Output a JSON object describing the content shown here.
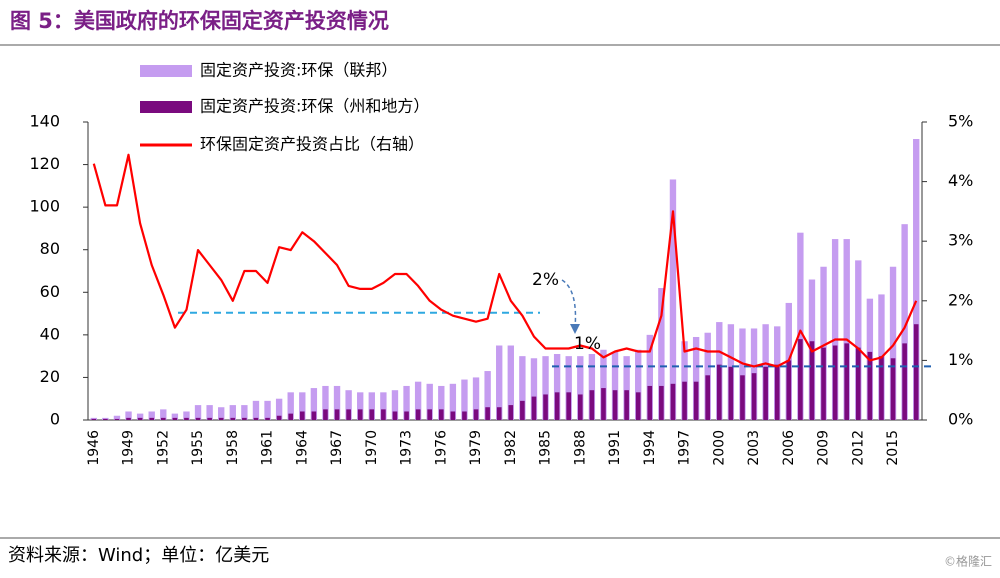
{
  "chart_data": {
    "type": "bar",
    "title": "图 5：美国政府的环保固定资产投资情况",
    "source": "资料来源：Wind；单位：亿美元",
    "watermark": "©格隆汇",
    "categories": [
      "1946",
      null,
      null,
      "1949",
      null,
      null,
      "1952",
      null,
      null,
      "1955",
      null,
      null,
      "1958",
      null,
      null,
      "1961",
      null,
      null,
      "1964",
      null,
      null,
      "1967",
      null,
      null,
      "1970",
      null,
      null,
      "1973",
      null,
      null,
      "1976",
      null,
      null,
      "1979",
      null,
      null,
      "1982",
      null,
      null,
      "1985",
      null,
      null,
      "1988",
      null,
      null,
      "1991",
      null,
      null,
      "1994",
      null,
      null,
      "1997",
      null,
      null,
      "2000",
      null,
      null,
      "2003",
      null,
      null,
      "2006",
      null,
      null,
      "2009",
      null,
      null,
      "2012",
      null,
      null,
      "2015",
      null,
      null
    ],
    "series": [
      {
        "name": "固定资产投资:环保（联邦）",
        "color": "#c59cf0",
        "type": "bar",
        "values": [
          1,
          1,
          2,
          4,
          3,
          4,
          5,
          3,
          4,
          7,
          7,
          6,
          7,
          7,
          9,
          9,
          10,
          13,
          13,
          15,
          16,
          16,
          14,
          13,
          13,
          13,
          14,
          16,
          18,
          17,
          16,
          17,
          19,
          20,
          23,
          35,
          35,
          30,
          29,
          30,
          31,
          30,
          30,
          31,
          33,
          32,
          30,
          33,
          40,
          62,
          113,
          37,
          39,
          41,
          46,
          45,
          43,
          43,
          45,
          44,
          55,
          88,
          66,
          72,
          85,
          85,
          75,
          57,
          59,
          72,
          92,
          132
        ]
      },
      {
        "name": "固定资产投资:环保（州和地方）",
        "color": "#7a0a7e",
        "type": "bar",
        "values": [
          0.5,
          0.5,
          0.5,
          1,
          1,
          1,
          1,
          1,
          1,
          1,
          1,
          1,
          1,
          1,
          1,
          1,
          2,
          3,
          4,
          4,
          5,
          5,
          5,
          5,
          5,
          5,
          4,
          4,
          5,
          5,
          5,
          4,
          4,
          5,
          6,
          6,
          7,
          9,
          11,
          12,
          13,
          13,
          12,
          14,
          15,
          14,
          14,
          13,
          16,
          16,
          17,
          18,
          18,
          21,
          26,
          25,
          21,
          22,
          25,
          26,
          28,
          38,
          37,
          34,
          35,
          36,
          34,
          32,
          30,
          29,
          36,
          45
        ]
      },
      {
        "name": "环保固定资产投资占比（右轴）",
        "color": "#ff0000",
        "type": "line",
        "axis": "y2",
        "values": [
          4.3,
          3.6,
          3.6,
          4.45,
          3.3,
          2.6,
          2.1,
          1.55,
          1.85,
          2.85,
          2.6,
          2.35,
          2.0,
          2.5,
          2.5,
          2.3,
          2.9,
          2.85,
          3.15,
          3.0,
          2.8,
          2.6,
          2.25,
          2.2,
          2.2,
          2.3,
          2.45,
          2.45,
          2.25,
          2.0,
          1.85,
          1.75,
          1.7,
          1.65,
          1.7,
          2.45,
          2.0,
          1.75,
          1.4,
          1.2,
          1.2,
          1.2,
          1.25,
          1.2,
          1.05,
          1.15,
          1.2,
          1.15,
          1.15,
          1.75,
          3.5,
          1.15,
          1.2,
          1.15,
          1.15,
          1.05,
          0.95,
          0.9,
          0.95,
          0.9,
          1.0,
          1.5,
          1.15,
          1.25,
          1.35,
          1.35,
          1.2,
          1.0,
          1.05,
          1.25,
          1.55,
          2.0
        ]
      }
    ],
    "ylim": [
      0,
      140
    ],
    "yticks": [
      0,
      20,
      40,
      60,
      80,
      100,
      120,
      140
    ],
    "y2lim": [
      0,
      5
    ],
    "y2ticks": [
      {
        "value": 0,
        "label": "0%"
      },
      {
        "value": 1,
        "label": "1%"
      },
      {
        "value": 2,
        "label": "2%"
      },
      {
        "value": 3,
        "label": "3%"
      },
      {
        "value": 4,
        "label": "4%"
      },
      {
        "value": 5,
        "label": "5%"
      }
    ],
    "reference_lines": [
      {
        "value": 1.8,
        "color": "#2ea8e0"
      },
      {
        "value": 0.9,
        "color": "#2060b0"
      }
    ],
    "annotations": [
      "2%",
      "1%"
    ]
  }
}
